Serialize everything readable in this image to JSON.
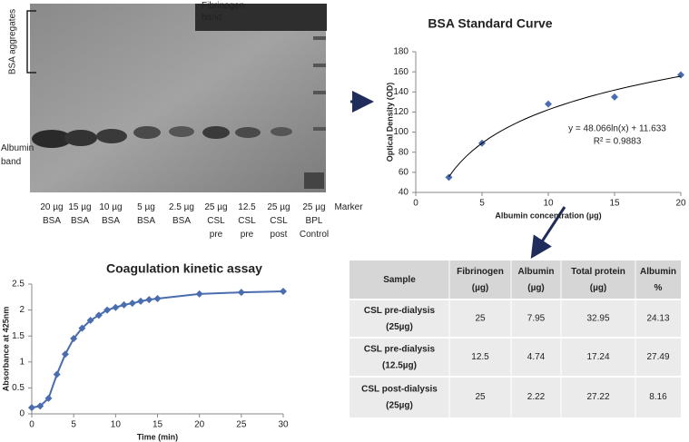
{
  "gel": {
    "fibrinogen_label": [
      "Fibrinogen",
      "band"
    ],
    "aggregates_label": "BSA aggregates",
    "albumin_label": [
      "Albumin",
      "band"
    ],
    "lanes": [
      [
        "20 µg",
        "BSA"
      ],
      [
        "15 µg",
        "BSA"
      ],
      [
        "10 µg",
        "BSA"
      ],
      [
        "5 µg",
        "BSA"
      ],
      [
        "2.5 µg",
        "BSA"
      ],
      [
        "25 µg",
        "CSL",
        "pre"
      ],
      [
        "12.5",
        "CSL",
        "pre"
      ],
      [
        "25 µg",
        "CSL",
        "post"
      ],
      [
        "25 µg",
        "BPL",
        "Control"
      ],
      [
        "Marker"
      ]
    ]
  },
  "chart_data": [
    {
      "type": "scatter",
      "title": "BSA Standard Curve",
      "x_label": "Albumin concentration (µg)",
      "y_label": "Optical Density (OD)",
      "series": [
        {
          "color": "#4a6db0",
          "x": [
            2.5,
            5,
            10,
            15,
            20
          ],
          "values": [
            55,
            89,
            128,
            135,
            157
          ]
        }
      ],
      "xlim": [
        0,
        20
      ],
      "xticks": [
        0,
        5,
        10,
        15,
        20
      ],
      "ylim": [
        40,
        180
      ],
      "yticks": [
        40,
        60,
        80,
        100,
        120,
        140,
        160,
        180
      ],
      "trendline": {
        "equation": "y = 48.066ln(x) + 11.633",
        "r_squared": "R² = 0.9883",
        "color": "#000000"
      }
    },
    {
      "type": "line",
      "title": "Coagulation kinetic assay",
      "x_label": "Time (min)",
      "y_label": "Absorbance at 425nm",
      "series": [
        {
          "color": "#4a6db0",
          "x": [
            0,
            1,
            2,
            3,
            4,
            5,
            6,
            7,
            8,
            9,
            10,
            11,
            12,
            13,
            14,
            15,
            20,
            25,
            30
          ],
          "values": [
            0.12,
            0.15,
            0.3,
            0.76,
            1.15,
            1.45,
            1.65,
            1.8,
            1.9,
            2.0,
            2.05,
            2.1,
            2.13,
            2.17,
            2.2,
            2.22,
            2.31,
            2.34,
            2.36
          ]
        }
      ],
      "xlim": [
        0,
        30
      ],
      "xticks": [
        0,
        5,
        10,
        15,
        20,
        25,
        30
      ],
      "ylim": [
        0,
        2.5
      ],
      "yticks": [
        0,
        0.5,
        1,
        1.5,
        2,
        2.5
      ]
    }
  ],
  "table": {
    "header": [
      [
        "Sample"
      ],
      [
        "Fibrinogen",
        "(µg)"
      ],
      [
        "Albumin",
        "(µg)"
      ],
      [
        "Total protein",
        "(µg)"
      ],
      [
        "Albumin",
        "%"
      ]
    ],
    "rows": [
      [
        [
          "CSL pre-dialysis",
          "(25µg)"
        ],
        25,
        7.95,
        32.95,
        24.13
      ],
      [
        [
          "CSL pre-dialysis",
          "(12.5µg)"
        ],
        12.5,
        4.74,
        17.24,
        27.49
      ],
      [
        [
          "CSL post-dialysis",
          "(25µg)"
        ],
        25,
        2.22,
        27.22,
        8.16
      ]
    ]
  }
}
